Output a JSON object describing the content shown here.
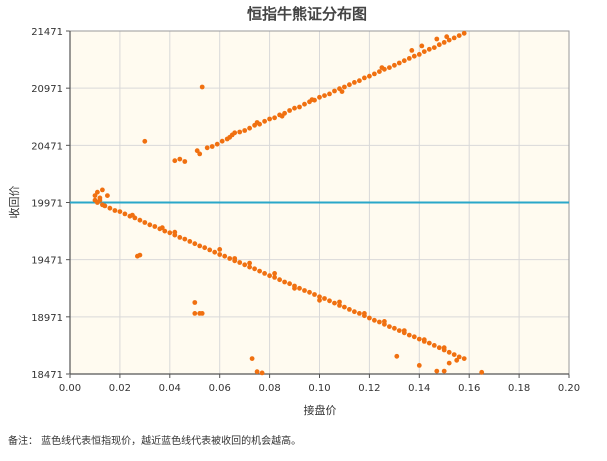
{
  "note": "备注： 蓝色线代表恒指现价，越近蓝色线代表被收回的机会越高。",
  "colors": {
    "plot_bg": "#fffbf0",
    "grid": "#d9d9d9",
    "axis": "#555555",
    "points": "#f07010",
    "hline": "#2aa7c9",
    "title": "#444444"
  },
  "chart_data": {
    "type": "scatter",
    "title": "恒指牛熊证分布图",
    "xlabel": "接盘价",
    "ylabel": "收回价",
    "xlim": [
      0,
      0.2
    ],
    "ylim": [
      18471,
      21471
    ],
    "xticks": [
      "0.00",
      "0.02",
      "0.04",
      "0.06",
      "0.08",
      "0.10",
      "0.12",
      "0.14",
      "0.16",
      "0.18",
      "0.20"
    ],
    "yticks": [
      "21471",
      "20971",
      "20471",
      "19971",
      "19471",
      "18971",
      "18471"
    ],
    "current_level": 19971,
    "grid": true,
    "series": [
      {
        "points": [
          [
            0.042,
            20337
          ],
          [
            0.044,
            20351
          ],
          [
            0.046,
            20330
          ],
          [
            0.051,
            20424
          ],
          [
            0.052,
            20396
          ],
          [
            0.055,
            20449
          ],
          [
            0.057,
            20461
          ],
          [
            0.059,
            20481
          ],
          [
            0.061,
            20507
          ],
          [
            0.063,
            20526
          ],
          [
            0.065,
            20562
          ],
          [
            0.066,
            20581
          ],
          [
            0.068,
            20588
          ],
          [
            0.07,
            20601
          ],
          [
            0.072,
            20621
          ],
          [
            0.074,
            20646
          ],
          [
            0.076,
            20656
          ],
          [
            0.078,
            20681
          ],
          [
            0.08,
            20701
          ],
          [
            0.082,
            20712
          ],
          [
            0.084,
            20737
          ],
          [
            0.086,
            20751
          ],
          [
            0.088,
            20776
          ],
          [
            0.09,
            20796
          ],
          [
            0.092,
            20806
          ],
          [
            0.094,
            20831
          ],
          [
            0.096,
            20852
          ],
          [
            0.098,
            20866
          ],
          [
            0.1,
            20891
          ],
          [
            0.102,
            20906
          ],
          [
            0.104,
            20921
          ],
          [
            0.106,
            20946
          ],
          [
            0.108,
            20966
          ],
          [
            0.11,
            20981
          ],
          [
            0.112,
            21001
          ],
          [
            0.114,
            21021
          ],
          [
            0.116,
            21036
          ],
          [
            0.118,
            21061
          ],
          [
            0.12,
            21076
          ],
          [
            0.122,
            21096
          ],
          [
            0.124,
            21116
          ],
          [
            0.126,
            21136
          ],
          [
            0.128,
            21151
          ],
          [
            0.13,
            21171
          ],
          [
            0.132,
            21191
          ],
          [
            0.134,
            21211
          ],
          [
            0.136,
            21231
          ],
          [
            0.138,
            21251
          ],
          [
            0.14,
            21266
          ],
          [
            0.142,
            21291
          ],
          [
            0.144,
            21311
          ],
          [
            0.146,
            21326
          ],
          [
            0.148,
            21351
          ],
          [
            0.15,
            21371
          ],
          [
            0.152,
            21391
          ],
          [
            0.154,
            21411
          ],
          [
            0.156,
            21431
          ],
          [
            0.158,
            21451
          ],
          [
            0.147,
            21401
          ],
          [
            0.151,
            21421
          ],
          [
            0.141,
            21341
          ],
          [
            0.137,
            21301
          ],
          [
            0.125,
            21151
          ],
          [
            0.109,
            20941
          ],
          [
            0.097,
            20871
          ],
          [
            0.085,
            20726
          ],
          [
            0.075,
            20671
          ],
          [
            0.064,
            20541
          ],
          [
            0.03,
            20506
          ],
          [
            0.053,
            20981
          ],
          [
            0.01,
            20031
          ],
          [
            0.011,
            20061
          ],
          [
            0.012,
            20011
          ],
          [
            0.013,
            20081
          ],
          [
            0.015,
            20031
          ],
          [
            0.01,
            19991
          ],
          [
            0.011,
            19971
          ],
          [
            0.012,
            19991
          ],
          [
            0.013,
            19951
          ],
          [
            0.014,
            19941
          ],
          [
            0.016,
            19921
          ],
          [
            0.018,
            19901
          ],
          [
            0.02,
            19891
          ],
          [
            0.022,
            19871
          ],
          [
            0.024,
            19851
          ],
          [
            0.026,
            19836
          ],
          [
            0.028,
            19816
          ],
          [
            0.03,
            19796
          ],
          [
            0.032,
            19776
          ],
          [
            0.034,
            19761
          ],
          [
            0.036,
            19741
          ],
          [
            0.038,
            19721
          ],
          [
            0.04,
            19706
          ],
          [
            0.042,
            19686
          ],
          [
            0.044,
            19666
          ],
          [
            0.046,
            19651
          ],
          [
            0.048,
            19631
          ],
          [
            0.05,
            19611
          ],
          [
            0.052,
            19591
          ],
          [
            0.054,
            19576
          ],
          [
            0.056,
            19556
          ],
          [
            0.058,
            19536
          ],
          [
            0.06,
            19516
          ],
          [
            0.062,
            19501
          ],
          [
            0.064,
            19481
          ],
          [
            0.066,
            19461
          ],
          [
            0.068,
            19446
          ],
          [
            0.07,
            19426
          ],
          [
            0.072,
            19406
          ],
          [
            0.074,
            19391
          ],
          [
            0.076,
            19371
          ],
          [
            0.078,
            19351
          ],
          [
            0.08,
            19331
          ],
          [
            0.082,
            19316
          ],
          [
            0.084,
            19296
          ],
          [
            0.086,
            19276
          ],
          [
            0.088,
            19261
          ],
          [
            0.09,
            19241
          ],
          [
            0.092,
            19221
          ],
          [
            0.094,
            19201
          ],
          [
            0.096,
            19186
          ],
          [
            0.098,
            19166
          ],
          [
            0.1,
            19146
          ],
          [
            0.102,
            19131
          ],
          [
            0.104,
            19111
          ],
          [
            0.106,
            19091
          ],
          [
            0.108,
            19071
          ],
          [
            0.11,
            19056
          ],
          [
            0.112,
            19036
          ],
          [
            0.114,
            19016
          ],
          [
            0.116,
            19001
          ],
          [
            0.118,
            18981
          ],
          [
            0.12,
            18961
          ],
          [
            0.122,
            18941
          ],
          [
            0.124,
            18926
          ],
          [
            0.126,
            18906
          ],
          [
            0.128,
            18886
          ],
          [
            0.13,
            18871
          ],
          [
            0.132,
            18851
          ],
          [
            0.134,
            18831
          ],
          [
            0.136,
            18811
          ],
          [
            0.138,
            18796
          ],
          [
            0.14,
            18776
          ],
          [
            0.142,
            18756
          ],
          [
            0.144,
            18741
          ],
          [
            0.146,
            18721
          ],
          [
            0.148,
            18701
          ],
          [
            0.15,
            18681
          ],
          [
            0.152,
            18661
          ],
          [
            0.154,
            18641
          ],
          [
            0.156,
            18621
          ],
          [
            0.158,
            18606
          ],
          [
            0.06,
            19561
          ],
          [
            0.066,
            19481
          ],
          [
            0.072,
            19441
          ],
          [
            0.082,
            19351
          ],
          [
            0.09,
            19221
          ],
          [
            0.1,
            19116
          ],
          [
            0.108,
            19101
          ],
          [
            0.118,
            19001
          ],
          [
            0.126,
            18931
          ],
          [
            0.134,
            18851
          ],
          [
            0.142,
            18771
          ],
          [
            0.15,
            18701
          ],
          [
            0.042,
            19711
          ],
          [
            0.037,
            19751
          ],
          [
            0.025,
            19861
          ],
          [
            0.027,
            19501
          ],
          [
            0.028,
            19511
          ],
          [
            0.05,
            19096
          ],
          [
            0.05,
            19001
          ],
          [
            0.052,
            19001
          ],
          [
            0.053,
            19001
          ],
          [
            0.073,
            18606
          ],
          [
            0.075,
            18491
          ],
          [
            0.077,
            18481
          ],
          [
            0.165,
            18486
          ],
          [
            0.147,
            18496
          ],
          [
            0.15,
            18496
          ],
          [
            0.152,
            18566
          ],
          [
            0.14,
            18546
          ],
          [
            0.131,
            18626
          ],
          [
            0.155,
            18591
          ]
        ]
      }
    ]
  }
}
